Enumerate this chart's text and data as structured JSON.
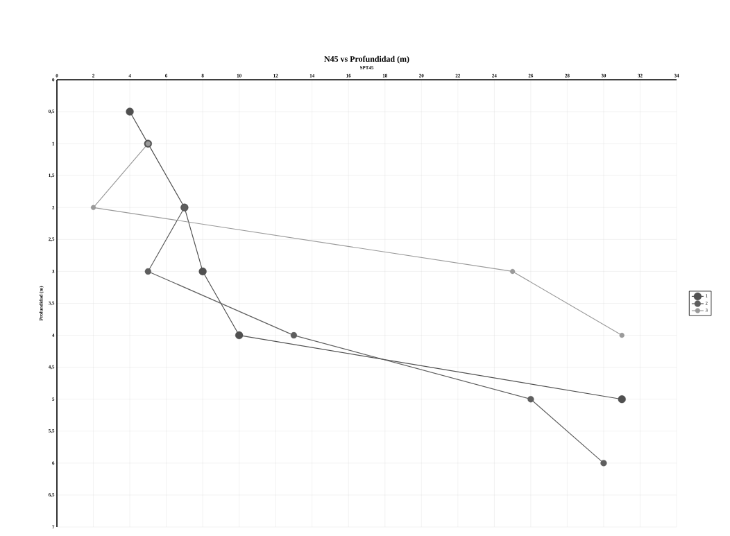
{
  "chart_data": {
    "type": "line",
    "title": "N45 vs Profundidad (m)",
    "xlabel": "SPT45",
    "ylabel": "Profundidad (m)",
    "xlim": [
      0,
      34
    ],
    "xticks": [
      0,
      2,
      4,
      6,
      8,
      10,
      12,
      14,
      16,
      18,
      20,
      22,
      24,
      26,
      28,
      30,
      32,
      34
    ],
    "ylim": [
      7,
      0
    ],
    "yticks": [
      0,
      {
        "value": 0.5,
        "label": "0,5"
      },
      1,
      {
        "value": 1.5,
        "label": "1,5"
      },
      2,
      {
        "value": 2.5,
        "label": "2,5"
      },
      3,
      {
        "value": 3.5,
        "label": "3,5"
      },
      4,
      {
        "value": 4.5,
        "label": "4,5"
      },
      5,
      {
        "value": 5.5,
        "label": "5,5"
      },
      6,
      {
        "value": 6.5,
        "label": "6,5"
      },
      7
    ],
    "grid": true,
    "legend": "right",
    "marker": "circle",
    "line_style": "solid",
    "series": [
      {
        "name": "1",
        "color": "#505050",
        "x": [
          4,
          5,
          7,
          8,
          10,
          31
        ],
        "values": [
          0.5,
          1,
          2,
          3,
          4,
          5
        ]
      },
      {
        "name": "2",
        "color": "#5e5e5e",
        "x": [
          7,
          5,
          13,
          26,
          30
        ],
        "values": [
          2,
          3,
          4,
          5,
          6
        ]
      },
      {
        "name": "3",
        "color": "#9a9a9a",
        "x": [
          5,
          2,
          25,
          31
        ],
        "values": [
          1,
          2,
          3,
          4
        ]
      }
    ]
  }
}
